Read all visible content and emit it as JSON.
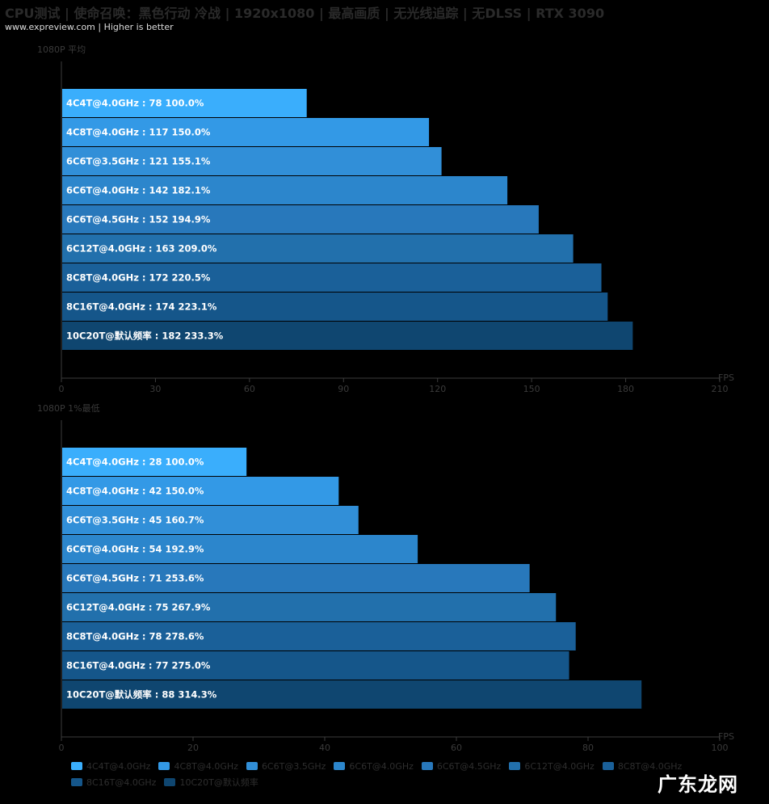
{
  "header": {
    "title": "CPU测试 | 使命召唤：黑色行动 冷战 | 1920x1080 | 最高画质 | 无光线追踪 | 无DLSS | RTX 3090",
    "subtitle": "www.expreview.com | Higher is better"
  },
  "colors": {
    "bar_palette": [
      "#3aaefc",
      "#3399e6",
      "#318fd8",
      "#2c86cc",
      "#2878bb",
      "#2270ac",
      "#1a6099",
      "#15568a",
      "#0f4670"
    ],
    "axis": "#3c3c3c",
    "tick_label": "#3a3a3a",
    "bar_label": "#ffffff"
  },
  "chart_data": [
    {
      "type": "bar",
      "orientation": "horizontal",
      "title": "1080P 平均",
      "xlabel": "FPS",
      "xlim": [
        0,
        210
      ],
      "xticks": [
        0,
        30,
        60,
        90,
        120,
        150,
        180,
        210
      ],
      "categories": [
        "4C4T@4.0GHz",
        "4C8T@4.0GHz",
        "6C6T@3.5GHz",
        "6C6T@4.0GHz",
        "6C6T@4.5GHz",
        "6C12T@4.0GHz",
        "8C8T@4.0GHz",
        "8C16T@4.0GHz",
        "10C20T@默认频率"
      ],
      "values": [
        78,
        117,
        121,
        142,
        152,
        163,
        172,
        174,
        182
      ],
      "percent_labels": [
        "100.0%",
        "150.0%",
        "155.1%",
        "182.1%",
        "194.9%",
        "209.0%",
        "220.5%",
        "223.1%",
        "233.3%"
      ]
    },
    {
      "type": "bar",
      "orientation": "horizontal",
      "title": "1080P 1%最低",
      "xlabel": "FPS",
      "xlim": [
        0,
        100
      ],
      "xticks": [
        0,
        20,
        40,
        60,
        80,
        100
      ],
      "categories": [
        "4C4T@4.0GHz",
        "4C8T@4.0GHz",
        "6C6T@3.5GHz",
        "6C6T@4.0GHz",
        "6C6T@4.5GHz",
        "6C12T@4.0GHz",
        "8C8T@4.0GHz",
        "8C16T@4.0GHz",
        "10C20T@默认频率"
      ],
      "values": [
        28,
        42,
        45,
        54,
        71,
        75,
        78,
        77,
        88
      ],
      "percent_labels": [
        "100.0%",
        "150.0%",
        "160.7%",
        "192.9%",
        "253.6%",
        "267.9%",
        "278.6%",
        "275.0%",
        "314.3%"
      ]
    }
  ],
  "legend": {
    "items": [
      "4C4T@4.0GHz",
      "4C8T@4.0GHz",
      "6C6T@3.5GHz",
      "6C6T@4.0GHz",
      "6C6T@4.5GHz",
      "6C12T@4.0GHz",
      "8C8T@4.0GHz",
      "8C16T@4.0GHz",
      "10C20T@默认频率"
    ]
  },
  "watermark": {
    "text": "广东龙网"
  }
}
